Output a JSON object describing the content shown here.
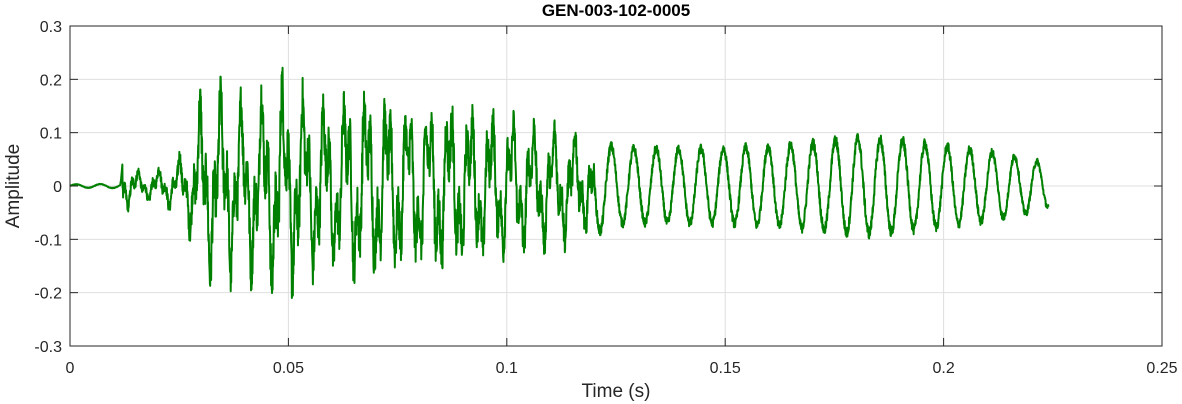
{
  "chart_data": {
    "type": "line",
    "title": "GEN-003-102-0005",
    "xlabel": "Time (s)",
    "ylabel": "Amplitude",
    "xlim": [
      0,
      0.25
    ],
    "ylim": [
      -0.3,
      0.3
    ],
    "xticks": [
      0,
      0.05,
      0.1,
      0.15,
      0.2,
      0.25
    ],
    "xtick_labels": [
      "0",
      "0.05",
      "0.1",
      "0.15",
      "0.2",
      "0.25"
    ],
    "yticks": [
      -0.3,
      -0.2,
      -0.1,
      0,
      0.1,
      0.2,
      0.3
    ],
    "ytick_labels": [
      "-0.3",
      "-0.2",
      "-0.1",
      "0",
      "0.1",
      "0.2",
      "0.3"
    ],
    "grid": true,
    "box": true,
    "series": [
      {
        "color": "#008000",
        "x_start": 0,
        "x_end": 0.224,
        "envelope": [
          [
            0.0,
            0.003
          ],
          [
            0.0115,
            0.004
          ],
          [
            0.012,
            0.05
          ],
          [
            0.016,
            0.03
          ],
          [
            0.02,
            0.035
          ],
          [
            0.024,
            0.05
          ],
          [
            0.027,
            0.08
          ],
          [
            0.03,
            0.18
          ],
          [
            0.035,
            0.19
          ],
          [
            0.04,
            0.17
          ],
          [
            0.045,
            0.2
          ],
          [
            0.048,
            0.22
          ],
          [
            0.055,
            0.18
          ],
          [
            0.06,
            0.17
          ],
          [
            0.065,
            0.19
          ],
          [
            0.07,
            0.18
          ],
          [
            0.075,
            0.17
          ],
          [
            0.08,
            0.16
          ],
          [
            0.085,
            0.18
          ],
          [
            0.09,
            0.16
          ],
          [
            0.095,
            0.15
          ],
          [
            0.1,
            0.14
          ],
          [
            0.105,
            0.13
          ],
          [
            0.11,
            0.12
          ],
          [
            0.115,
            0.11
          ],
          [
            0.12,
            0.09
          ],
          [
            0.125,
            0.07
          ],
          [
            0.13,
            0.07
          ],
          [
            0.14,
            0.07
          ],
          [
            0.15,
            0.07
          ],
          [
            0.16,
            0.075
          ],
          [
            0.17,
            0.08
          ],
          [
            0.18,
            0.09
          ],
          [
            0.19,
            0.085
          ],
          [
            0.2,
            0.075
          ],
          [
            0.21,
            0.065
          ],
          [
            0.22,
            0.05
          ],
          [
            0.224,
            0.04
          ]
        ]
      }
    ]
  }
}
